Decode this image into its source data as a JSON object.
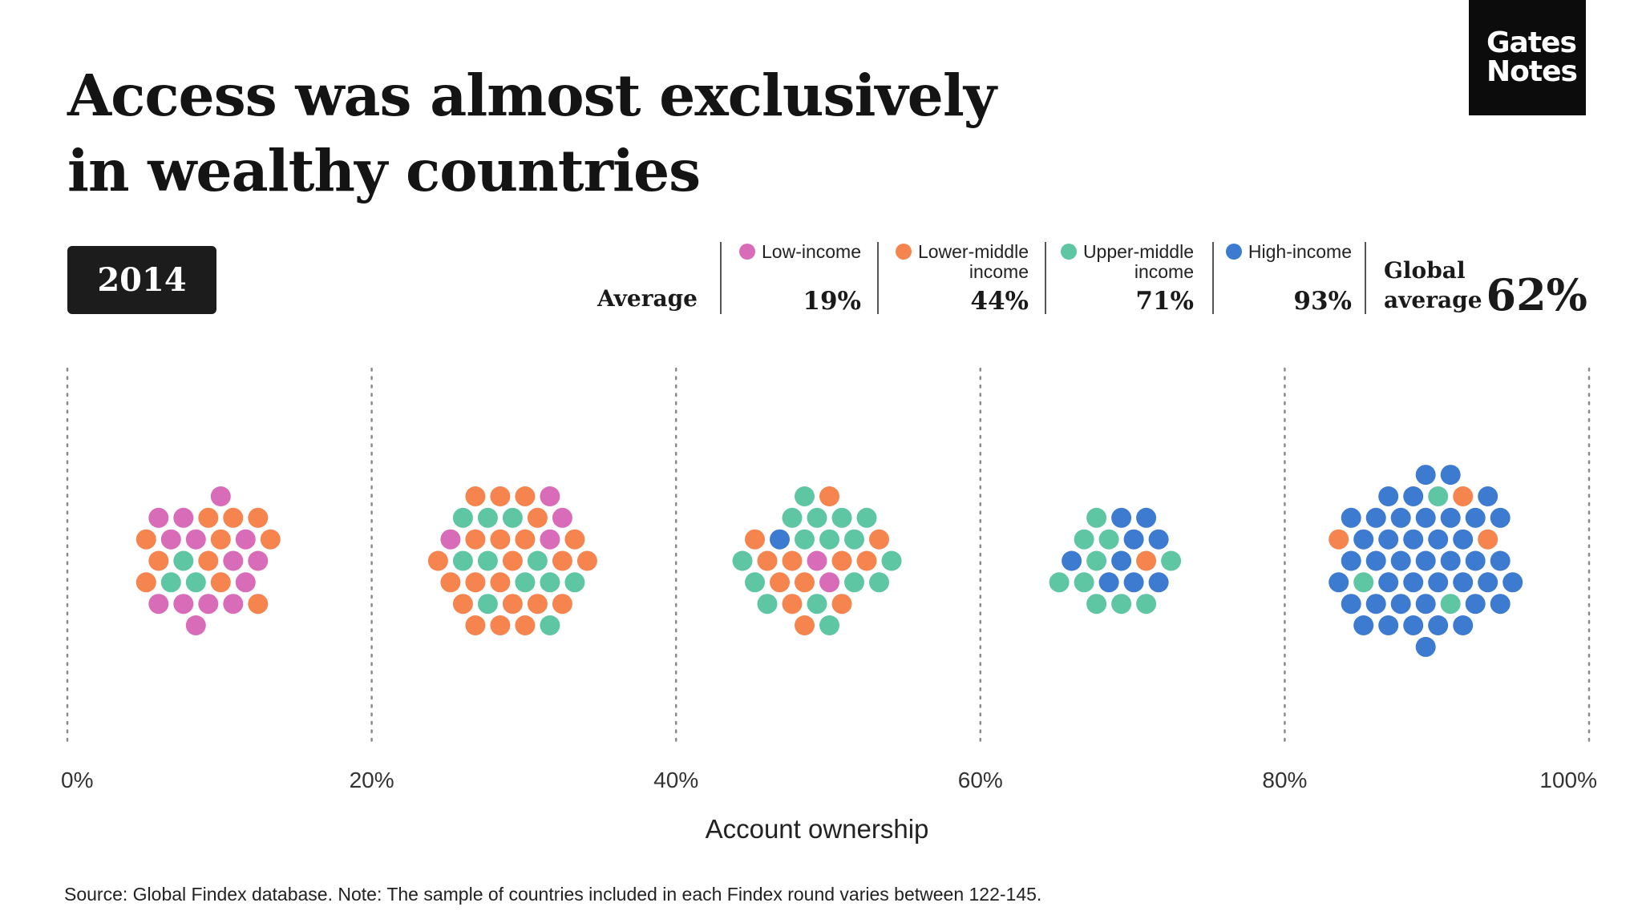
{
  "title": {
    "line1": "Access was almost exclusively",
    "line2": "in wealthy countries"
  },
  "logo": {
    "line1": "Gates",
    "line2": "Notes"
  },
  "year_badge": "2014",
  "legend": {
    "average_label": "Average",
    "groups": [
      {
        "name_line1": "Low-income",
        "name_line2": "",
        "average": "19%",
        "color": "#d96cb8"
      },
      {
        "name_line1": "Lower-middle",
        "name_line2": "income",
        "average": "44%",
        "color": "#f5844f"
      },
      {
        "name_line1": "Upper-middle",
        "name_line2": "income",
        "average": "71%",
        "color": "#5fc6a4"
      },
      {
        "name_line1": "High-income",
        "name_line2": "",
        "average": "93%",
        "color": "#3d7bd0"
      }
    ],
    "global_label_line1": "Global",
    "global_label_line2": "average",
    "global_value": "62%"
  },
  "chart_data": {
    "type": "scatter",
    "subtype": "beeswarm, binned by 20% account-ownership bands",
    "xlabel": "Account ownership",
    "xlim": [
      0,
      100
    ],
    "x_ticks": [
      "0%",
      "20%",
      "40%",
      "60%",
      "80%",
      "100%"
    ],
    "grid": "dotted vertical lines at each tick",
    "series_order": [
      "Low-income",
      "Lower-middle income",
      "Upper-middle income",
      "High-income"
    ],
    "bins": [
      {
        "range": "0-20%",
        "counts": {
          "Low-income": 14,
          "Lower-middle income": 11,
          "Upper-middle income": 3,
          "High-income": 0
        }
      },
      {
        "range": "20-40%",
        "counts": {
          "Low-income": 4,
          "Lower-middle income": 22,
          "Upper-middle income": 11,
          "High-income": 0
        }
      },
      {
        "range": "40-60%",
        "counts": {
          "Low-income": 2,
          "Lower-middle income": 12,
          "Upper-middle income": 16,
          "High-income": 1
        }
      },
      {
        "range": "60-80%",
        "counts": {
          "Low-income": 0,
          "Lower-middle income": 1,
          "Upper-middle income": 10,
          "High-income": 9
        }
      },
      {
        "range": "80-100%",
        "counts": {
          "Low-income": 0,
          "Lower-middle income": 3,
          "Upper-middle income": 3,
          "High-income": 43
        }
      }
    ]
  },
  "source": "Source: Global Findex database. Note: The sample of countries included in each Findex round varies between 122-145."
}
